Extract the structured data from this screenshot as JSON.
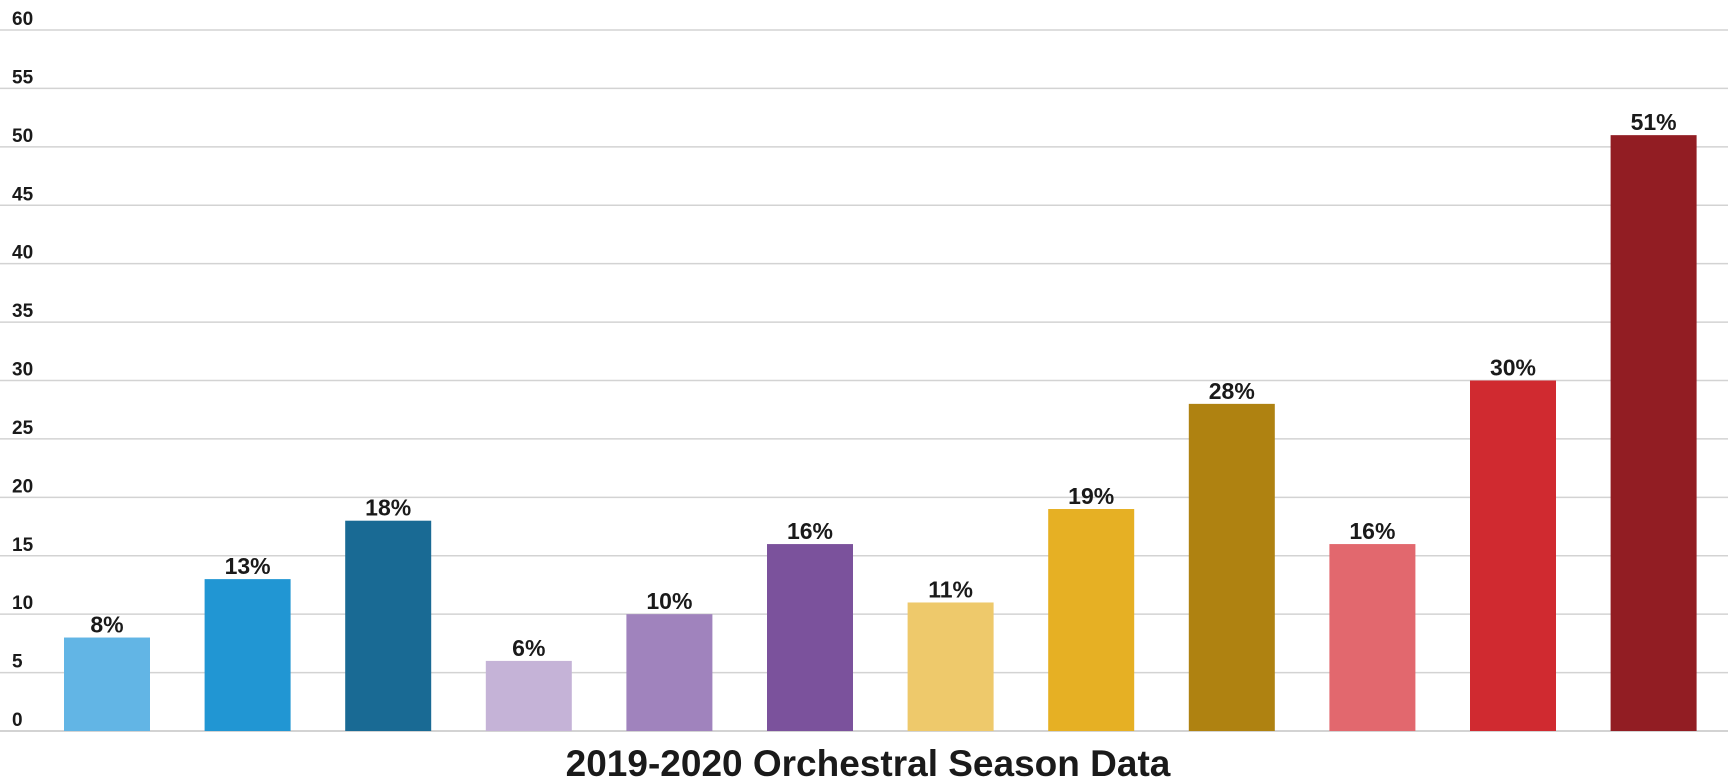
{
  "chart_data": {
    "type": "bar",
    "title": "2019-2020 Orchestral Season Data",
    "xlabel": "",
    "ylabel": "",
    "ylim": [
      0,
      60
    ],
    "yticks": [
      "0",
      "5",
      "10",
      "15",
      "20",
      "25",
      "30",
      "35",
      "40",
      "45",
      "50",
      "55",
      "60"
    ],
    "grid": true,
    "values": [
      8,
      13,
      18,
      6,
      10,
      16,
      11,
      19,
      28,
      16,
      30,
      51
    ],
    "data_labels": [
      "8%",
      "13%",
      "18%",
      "6%",
      "10%",
      "16%",
      "11%",
      "19%",
      "28%",
      "16%",
      "30%",
      "51%"
    ],
    "colors": [
      "#62B5E5",
      "#2196D3",
      "#196A94",
      "#C5B3D7",
      "#A083BD",
      "#7B529C",
      "#EEC96B",
      "#E6B024",
      "#AF8211",
      "#E2686E",
      "#D02A30",
      "#921D23"
    ],
    "grid_color": "#d3d3d3",
    "text_color": "#1a1a1a"
  }
}
